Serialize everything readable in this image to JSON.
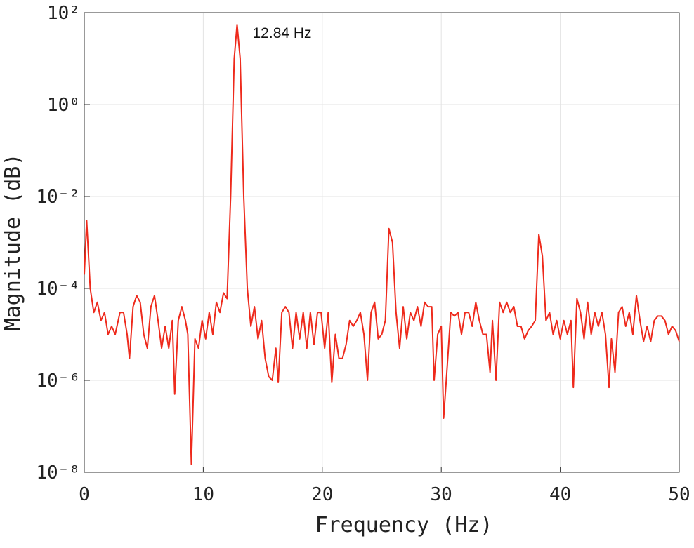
{
  "chart_data": {
    "type": "line",
    "xlabel": "Frequency (Hz)",
    "ylabel": "Magnitude (dB)",
    "annotation": "12.84 Hz",
    "annotation_x": 12.84,
    "yscale": "log",
    "grid": true,
    "xlim": [
      0,
      50
    ],
    "xticks": [
      0,
      10,
      20,
      30,
      40,
      50
    ],
    "ylim": [
      1e-08,
      100
    ],
    "yticks": [
      {
        "value": 1e-08,
        "label": "10⁻⁸"
      },
      {
        "value": 1e-06,
        "label": "10⁻⁶"
      },
      {
        "value": 0.0001,
        "label": "10⁻⁴"
      },
      {
        "value": 0.01,
        "label": "10⁻²"
      },
      {
        "value": 1,
        "label": "10⁰"
      },
      {
        "value": 100,
        "label": "10²"
      }
    ],
    "series": [
      {
        "color": "#ee2a1c",
        "x": [
          0,
          0.2,
          0.5,
          0.8,
          1.1,
          1.4,
          1.7,
          2.0,
          2.3,
          2.6,
          3.0,
          3.3,
          3.6,
          3.8,
          4.1,
          4.4,
          4.7,
          5.0,
          5.3,
          5.6,
          5.9,
          6.2,
          6.5,
          6.8,
          7.1,
          7.4,
          7.6,
          7.9,
          8.2,
          8.5,
          8.7,
          9.0,
          9.3,
          9.6,
          9.9,
          10.2,
          10.5,
          10.8,
          11.1,
          11.4,
          11.7,
          12.0,
          12.3,
          12.6,
          12.84,
          13.1,
          13.4,
          13.7,
          14.0,
          14.3,
          14.6,
          14.9,
          15.2,
          15.5,
          15.8,
          16.1,
          16.3,
          16.6,
          16.9,
          17.2,
          17.5,
          17.8,
          18.1,
          18.4,
          18.7,
          19.0,
          19.3,
          19.6,
          19.9,
          20.2,
          20.5,
          20.8,
          21.1,
          21.4,
          21.7,
          22.0,
          22.3,
          22.6,
          22.9,
          23.2,
          23.5,
          23.8,
          24.1,
          24.4,
          24.7,
          25.0,
          25.3,
          25.6,
          25.9,
          26.2,
          26.5,
          26.8,
          27.1,
          27.4,
          27.7,
          28.0,
          28.3,
          28.6,
          28.9,
          29.2,
          29.4,
          29.7,
          30.0,
          30.2,
          30.5,
          30.8,
          31.1,
          31.4,
          31.7,
          32.0,
          32.3,
          32.6,
          32.9,
          33.2,
          33.5,
          33.8,
          34.1,
          34.3,
          34.6,
          34.9,
          35.2,
          35.5,
          35.8,
          36.1,
          36.4,
          36.7,
          37.0,
          37.3,
          37.6,
          37.9,
          38.2,
          38.5,
          38.8,
          39.1,
          39.4,
          39.7,
          40.0,
          40.3,
          40.6,
          40.9,
          41.1,
          41.4,
          41.7,
          42.0,
          42.3,
          42.6,
          42.9,
          43.2,
          43.5,
          43.8,
          44.1,
          44.3,
          44.6,
          44.9,
          45.2,
          45.5,
          45.8,
          46.1,
          46.4,
          46.7,
          47.0,
          47.3,
          47.6,
          47.9,
          48.2,
          48.5,
          48.8,
          49.1,
          49.4,
          49.7,
          50.0
        ],
        "values": [
          0.0002,
          0.003,
          0.0001,
          3e-05,
          5e-05,
          2e-05,
          3e-05,
          1e-05,
          1.5e-05,
          1e-05,
          3e-05,
          3e-05,
          1e-05,
          3e-06,
          4e-05,
          7e-05,
          5e-05,
          1e-05,
          5e-06,
          4e-05,
          7e-05,
          2e-05,
          5e-06,
          1.5e-05,
          5e-06,
          2e-05,
          5e-07,
          2e-05,
          4e-05,
          2e-05,
          1e-05,
          1.5e-08,
          8e-06,
          5e-06,
          2e-05,
          8e-06,
          3e-05,
          1e-05,
          5e-05,
          3e-05,
          8e-05,
          6e-05,
          0.01,
          10,
          55,
          10,
          0.01,
          0.0001,
          1.5e-05,
          4e-05,
          8e-06,
          2e-05,
          3e-06,
          1.2e-06,
          1e-06,
          5e-06,
          9e-07,
          3e-05,
          4e-05,
          3e-05,
          5e-06,
          3e-05,
          8e-06,
          3e-05,
          5e-06,
          3e-05,
          6e-06,
          3e-05,
          3e-05,
          5e-06,
          3e-05,
          9e-07,
          1e-05,
          3e-06,
          3e-06,
          6e-06,
          2e-05,
          1.5e-05,
          2e-05,
          3e-05,
          1e-05,
          1e-06,
          3e-05,
          5e-05,
          8e-06,
          1e-05,
          2e-05,
          0.002,
          0.001,
          3e-05,
          5e-06,
          4e-05,
          8e-06,
          3e-05,
          2e-05,
          4e-05,
          1.5e-05,
          5e-05,
          4e-05,
          4e-05,
          1e-06,
          1e-05,
          1.5e-05,
          1.5e-07,
          2e-06,
          3e-05,
          2.5e-05,
          3e-05,
          1e-05,
          3e-05,
          3e-05,
          1.5e-05,
          5e-05,
          2e-05,
          1e-05,
          1e-05,
          1.5e-06,
          2e-05,
          1e-06,
          5e-05,
          3e-05,
          5e-05,
          3e-05,
          4e-05,
          1.5e-05,
          1.5e-05,
          8e-06,
          1.2e-05,
          1.5e-05,
          2e-05,
          0.0015,
          0.0005,
          2e-05,
          3e-05,
          1e-05,
          2e-05,
          8e-06,
          2e-05,
          1e-05,
          2e-05,
          7e-07,
          6e-05,
          3e-05,
          8e-06,
          5e-05,
          1e-05,
          3e-05,
          1.5e-05,
          3e-05,
          1e-05,
          7e-07,
          8e-06,
          1.5e-06,
          3e-05,
          4e-05,
          1.5e-05,
          3e-05,
          1e-05,
          7e-05,
          2e-05,
          7e-06,
          1.5e-05,
          7e-06,
          2e-05,
          2.5e-05,
          2.5e-05,
          2e-05,
          1e-05,
          1.5e-05,
          1.2e-05,
          7e-06
        ]
      }
    ]
  }
}
